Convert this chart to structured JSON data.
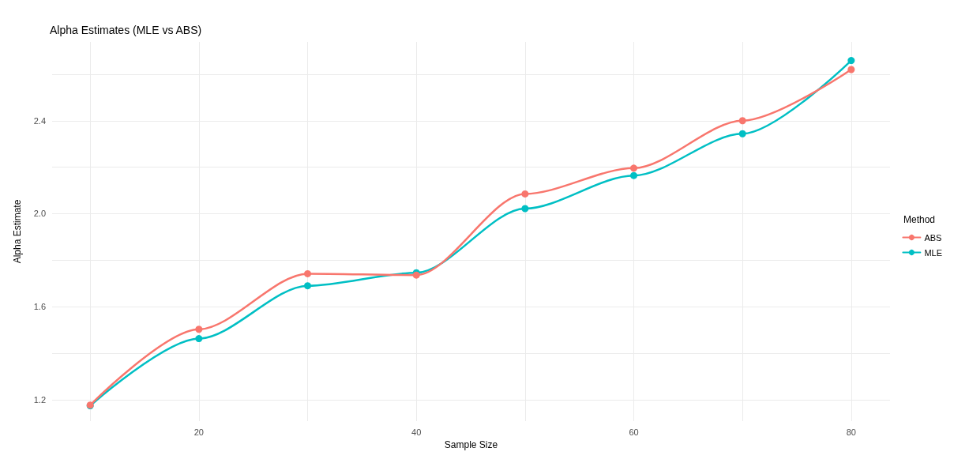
{
  "chart_data": {
    "type": "line",
    "title": "Alpha Estimates (MLE vs ABS)",
    "xlabel": "Sample Size",
    "ylabel": "Alpha Estimate",
    "legend_title": "Method",
    "x": [
      10,
      20,
      30,
      40,
      50,
      60,
      70,
      80
    ],
    "series": [
      {
        "name": "ABS",
        "color": "#f8766d",
        "values": [
          1.177,
          1.503,
          1.742,
          1.736,
          2.085,
          2.196,
          2.4,
          2.62
        ]
      },
      {
        "name": "MLE",
        "color": "#00bfc4",
        "values": [
          1.174,
          1.463,
          1.69,
          1.746,
          2.022,
          2.164,
          2.344,
          2.659
        ]
      }
    ],
    "xlim": [
      6.5,
      83.57
    ],
    "ylim": [
      1.108,
      2.739
    ],
    "xticks": [
      {
        "value": 10,
        "label": null
      },
      20,
      {
        "value": 30,
        "label": null
      },
      40,
      {
        "value": 50,
        "label": null
      },
      60,
      {
        "value": 70,
        "label": null
      },
      80
    ],
    "yticks": [
      1.2,
      {
        "value": 1.4,
        "label": null
      },
      1.6,
      {
        "value": 1.8,
        "label": null
      },
      {
        "value": 2,
        "label": "2.0"
      },
      {
        "value": 2.2,
        "label": null
      },
      2.4,
      {
        "value": 2.6,
        "label": null
      }
    ],
    "grid": true,
    "legend": "right",
    "marker": "circle",
    "line_style": "solid"
  }
}
